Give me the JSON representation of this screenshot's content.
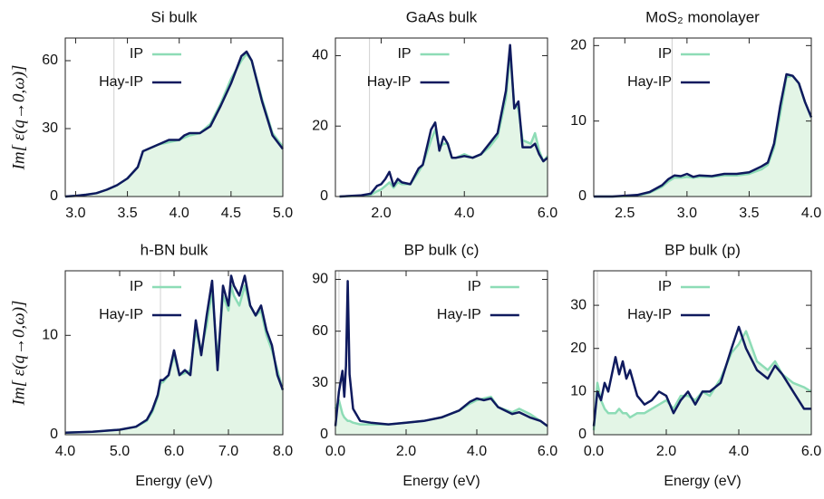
{
  "chart_data": [
    {
      "type": "area-line",
      "title": "Si bulk",
      "ylabel": "Im[ ε(q→0,ω)]",
      "legend": "upper center",
      "vline": 3.37,
      "xlim": [
        2.9,
        5.0
      ],
      "xticks": [
        {
          "value": 3,
          "label": "3.0"
        },
        3.5,
        {
          "value": 4,
          "label": "4.0"
        },
        4.5,
        {
          "value": 5,
          "label": "5.0"
        }
      ],
      "ylim": [
        0,
        70
      ],
      "yticks": [
        0,
        30,
        60
      ],
      "x": [
        2.9,
        3.0,
        3.1,
        3.2,
        3.3,
        3.4,
        3.5,
        3.6,
        3.65,
        3.7,
        3.8,
        3.9,
        4.0,
        4.05,
        4.1,
        4.2,
        4.3,
        4.4,
        4.5,
        4.6,
        4.65,
        4.7,
        4.8,
        4.9,
        5.0
      ],
      "series": [
        {
          "name": "IP",
          "color": "#8ddcb6",
          "fill": "#e3f5e6",
          "values": [
            0,
            0.3,
            0.8,
            1.5,
            3,
            5,
            8,
            13,
            20,
            21,
            23,
            24,
            25,
            26,
            27,
            28,
            32,
            41,
            52,
            60,
            63,
            60,
            43,
            28,
            22
          ]
        },
        {
          "name": "Hay-IP",
          "color": "#0f1a5e",
          "values": [
            0,
            0.3,
            0.8,
            1.5,
            3,
            5,
            8,
            13,
            20,
            21,
            23,
            25,
            25,
            27,
            28,
            28,
            31,
            40,
            50,
            62,
            64,
            60,
            42,
            27,
            21
          ]
        }
      ]
    },
    {
      "type": "area-line",
      "title": "GaAs bulk",
      "legend": "upper center",
      "vline": 1.72,
      "xlim": [
        0.9,
        6.0
      ],
      "xticks": [
        {
          "value": 2,
          "label": "2.0"
        },
        {
          "value": 4,
          "label": "4.0"
        },
        {
          "value": 6,
          "label": "6.0"
        }
      ],
      "ylim": [
        0,
        45
      ],
      "yticks": [
        0,
        20,
        40
      ],
      "x": [
        1.0,
        1.5,
        1.75,
        1.9,
        2.0,
        2.1,
        2.2,
        2.3,
        2.4,
        2.5,
        2.7,
        2.9,
        3.0,
        3.2,
        3.3,
        3.4,
        3.5,
        3.6,
        3.7,
        3.8,
        4.0,
        4.2,
        4.4,
        4.6,
        4.8,
        5.0,
        5.1,
        5.2,
        5.3,
        5.4,
        5.6,
        5.7,
        5.8,
        5.9,
        6.0
      ],
      "series": [
        {
          "name": "IP",
          "color": "#8ddcb6",
          "fill": "#e3f5e6",
          "values": [
            0,
            0.2,
            0.5,
            1.5,
            2,
            3,
            4,
            2.5,
            4,
            3.5,
            3.5,
            7,
            9,
            16,
            19,
            14,
            15,
            15,
            11,
            11,
            12,
            11,
            12,
            14,
            17,
            28,
            41,
            26,
            25,
            16,
            15,
            18,
            13,
            10,
            11.5
          ]
        },
        {
          "name": "Hay-IP",
          "color": "#0f1a5e",
          "values": [
            0,
            0.3,
            0.8,
            3,
            3.5,
            5,
            7,
            3,
            5,
            4,
            3.5,
            8,
            9,
            19,
            21,
            13,
            17,
            15,
            11,
            11,
            11.5,
            11,
            12,
            15,
            18,
            30,
            43,
            25,
            27,
            14,
            14,
            15,
            12,
            10,
            11
          ]
        }
      ]
    },
    {
      "type": "area-line",
      "title": "MoS₂ monolayer",
      "legend": "upper center",
      "vline": 2.88,
      "xlim": [
        2.25,
        4.0
      ],
      "xticks": [
        2.5,
        {
          "value": 3,
          "label": "3.0"
        },
        3.5,
        {
          "value": 4,
          "label": "4.0"
        }
      ],
      "ylim": [
        0,
        21
      ],
      "yticks": [
        0,
        10,
        20
      ],
      "x": [
        2.25,
        2.4,
        2.6,
        2.7,
        2.8,
        2.85,
        2.9,
        2.95,
        3.0,
        3.05,
        3.1,
        3.2,
        3.3,
        3.4,
        3.5,
        3.6,
        3.65,
        3.7,
        3.75,
        3.8,
        3.85,
        3.9,
        3.95,
        4.0
      ],
      "series": [
        {
          "name": "IP",
          "color": "#8ddcb6",
          "fill": "#e3f5e6",
          "values": [
            0,
            0,
            0.1,
            0.5,
            1.3,
            2,
            2.5,
            2.5,
            2.6,
            2.5,
            2.6,
            2.6,
            2.8,
            2.8,
            3,
            3.6,
            4.2,
            6.5,
            11,
            15.8,
            16,
            15,
            12.5,
            10.5
          ]
        },
        {
          "name": "Hay-IP",
          "color": "#0f1a5e",
          "values": [
            0,
            0,
            0.2,
            0.6,
            1.5,
            2.3,
            2.8,
            2.7,
            3,
            2.6,
            2.8,
            2.7,
            3,
            3,
            3.2,
            4,
            4.5,
            7,
            12,
            16.2,
            16,
            15,
            12.5,
            10.5
          ]
        }
      ]
    },
    {
      "type": "area-line",
      "title": "h-BN bulk",
      "ylabel": "Im[ ε(q→0,ω)]",
      "xlabel": "Energy (eV)",
      "legend": "upper center",
      "vline": 5.75,
      "xlim": [
        4,
        8
      ],
      "xticks": [
        {
          "value": 4,
          "label": "4.0"
        },
        {
          "value": 5,
          "label": "5.0"
        },
        {
          "value": 6,
          "label": "6.0"
        },
        {
          "value": 7,
          "label": "7.0"
        },
        {
          "value": 8,
          "label": "8.0"
        }
      ],
      "ylim": [
        0,
        16.5
      ],
      "yticks": [
        0,
        10
      ],
      "x": [
        4.0,
        4.5,
        5.0,
        5.3,
        5.5,
        5.6,
        5.7,
        5.75,
        5.8,
        5.9,
        6.0,
        6.1,
        6.2,
        6.3,
        6.4,
        6.5,
        6.6,
        6.7,
        6.8,
        6.9,
        7.0,
        7.05,
        7.1,
        7.2,
        7.3,
        7.4,
        7.5,
        7.6,
        7.7,
        7.8,
        7.9,
        8.0
      ],
      "series": [
        {
          "name": "IP",
          "color": "#8ddcb6",
          "fill": "#e3f5e6",
          "values": [
            0.2,
            0.3,
            0.5,
            0.8,
            1.4,
            2.3,
            3.8,
            5.2,
            5.3,
            6,
            8,
            6,
            6.2,
            6.5,
            10.5,
            8.5,
            11,
            14.5,
            7.5,
            14,
            12.5,
            15,
            14,
            13,
            15,
            13,
            12,
            12.5,
            10,
            8.5,
            6.5,
            4.5
          ]
        },
        {
          "name": "Hay-IP",
          "color": "#0f1a5e",
          "values": [
            0.2,
            0.3,
            0.5,
            0.8,
            1.5,
            2.5,
            4,
            5.5,
            5.5,
            6,
            8.5,
            6,
            6.5,
            6,
            11.5,
            8,
            12,
            15.5,
            6.5,
            15,
            13,
            16,
            15,
            14,
            16,
            13,
            12,
            13,
            10.5,
            9,
            6,
            4.5
          ]
        }
      ]
    },
    {
      "type": "area-line",
      "title": "BP bulk (c)",
      "xlabel": "Energy (eV)",
      "legend": "upper right",
      "vline": 0.1,
      "xlim": [
        0,
        6
      ],
      "xticks": [
        {
          "value": 0,
          "label": "0.0"
        },
        {
          "value": 2,
          "label": "2.0"
        },
        {
          "value": 4,
          "label": "4.0"
        },
        {
          "value": 6,
          "label": "6.0"
        }
      ],
      "ylim": [
        0,
        95
      ],
      "yticks": [
        0,
        30,
        60,
        90
      ],
      "x": [
        0,
        0.1,
        0.2,
        0.25,
        0.3,
        0.35,
        0.4,
        0.5,
        0.7,
        1.0,
        1.5,
        2.0,
        2.5,
        3.0,
        3.5,
        3.8,
        4.0,
        4.2,
        4.4,
        4.6,
        5.0,
        5.2,
        5.5,
        5.8,
        6.0
      ],
      "series": [
        {
          "name": "IP",
          "color": "#8ddcb6",
          "fill": "#e3f5e6",
          "values": [
            15,
            20,
            12,
            10,
            9,
            8,
            8,
            7,
            6,
            6,
            6,
            7,
            8,
            10,
            14,
            18,
            20,
            21,
            22,
            16,
            13,
            15,
            12,
            8,
            5
          ]
        },
        {
          "name": "Hay-IP",
          "color": "#0f1a5e",
          "values": [
            5,
            25,
            37,
            22,
            40,
            89,
            35,
            15,
            8,
            7,
            6,
            7,
            8,
            10,
            14,
            19,
            21,
            20,
            21,
            16,
            12,
            13,
            10,
            8,
            5
          ]
        }
      ]
    },
    {
      "type": "area-line",
      "title": "BP bulk (p)",
      "xlabel": "Energy (eV)",
      "legend": "upper center",
      "vline": 0.1,
      "xlim": [
        0,
        6
      ],
      "xticks": [
        {
          "value": 0,
          "label": "0.0"
        },
        {
          "value": 2,
          "label": "2.0"
        },
        {
          "value": 4,
          "label": "4.0"
        },
        {
          "value": 6,
          "label": "6.0"
        }
      ],
      "ylim": [
        0,
        38
      ],
      "yticks": [
        0,
        10,
        20,
        30
      ],
      "x": [
        0,
        0.1,
        0.2,
        0.3,
        0.4,
        0.5,
        0.6,
        0.7,
        0.8,
        0.9,
        1.0,
        1.2,
        1.4,
        1.6,
        1.8,
        2.0,
        2.2,
        2.4,
        2.6,
        2.8,
        3.0,
        3.2,
        3.5,
        3.8,
        4.0,
        4.2,
        4.5,
        4.8,
        5.0,
        5.2,
        5.5,
        5.8,
        6.0
      ],
      "series": [
        {
          "name": "IP",
          "color": "#8ddcb6",
          "fill": "#e3f5e6",
          "values": [
            1,
            12,
            8,
            6,
            5,
            5,
            5,
            6,
            5,
            5,
            4,
            5,
            5,
            6,
            7,
            8,
            6,
            9,
            9,
            8,
            10,
            9,
            13,
            19,
            21,
            24,
            17,
            15,
            17,
            14,
            12,
            11,
            10
          ]
        },
        {
          "name": "Hay-IP",
          "color": "#0f1a5e",
          "values": [
            2,
            10,
            8,
            12,
            10,
            14,
            18,
            14,
            17,
            13,
            15,
            9,
            7,
            8,
            10,
            9,
            5,
            8,
            10,
            7,
            10,
            10,
            12,
            20,
            25,
            20,
            15,
            13,
            16,
            14,
            10,
            6,
            6
          ]
        }
      ]
    }
  ]
}
